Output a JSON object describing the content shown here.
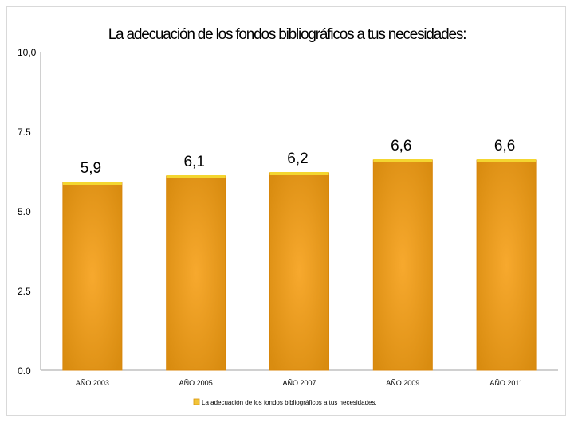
{
  "chart_data": {
    "type": "bar",
    "title": "La adecuación de los fondos bibliográficos a tus necesidades:",
    "categories": [
      "AÑO 2003",
      "AÑO 2005",
      "AÑO 2007",
      "AÑO 2009",
      "AÑO 2011"
    ],
    "values": [
      5.9,
      6.1,
      6.2,
      6.6,
      6.6
    ],
    "value_labels": [
      "5,9",
      "6,1",
      "6,2",
      "6,6",
      "6,6"
    ],
    "series": [
      {
        "name": "La adecuación de los fondos bibliográficos a tus necesidades.",
        "values": [
          5.9,
          6.1,
          6.2,
          6.6,
          6.6
        ]
      }
    ],
    "yticks": [
      "0.0",
      "2.5",
      "5.0",
      "7.5",
      "10,0"
    ],
    "ylim": [
      0,
      10
    ],
    "xlabel": "",
    "ylabel": "",
    "grid": false,
    "legend": "bottom",
    "colors": {
      "bar": "#f2a22a",
      "bar_edge": "#d8860a",
      "bar_top": "#f4d630",
      "axis": "#a0a0a0"
    }
  }
}
